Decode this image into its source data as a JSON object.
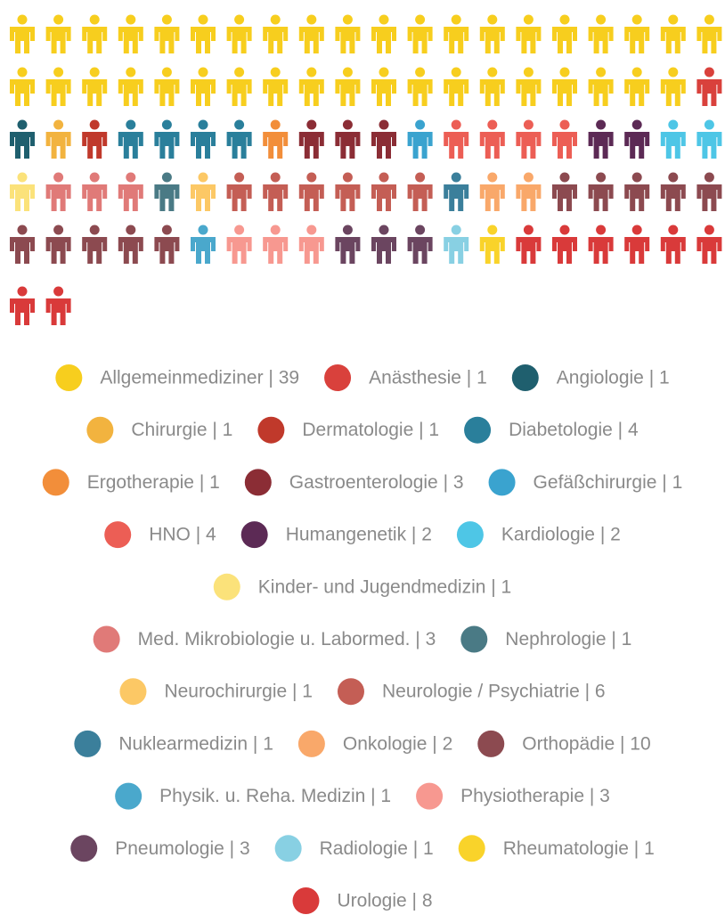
{
  "chart_data": {
    "type": "pictograph",
    "categories": [
      "Allgemeinmediziner | 39",
      "Anästhesie | 1",
      "Angiologie | 1",
      "Chirurgie | 1",
      "Dermatologie | 1",
      "Diabetologie | 4",
      "Ergotherapie | 1",
      "Gastroenterologie | 3",
      "Gefäßchirurgie | 1",
      "HNO | 4",
      "Humangenetik | 2",
      "Kardiologie | 2",
      "Kinder- und Jugendmedizin | 1",
      "Med. Mikrobiologie u. Labormed. | 3",
      "Nephrologie | 1",
      "Neurochirurgie | 1",
      "Neurologie / Psychiatrie | 6",
      "Nuklearmedizin | 1",
      "Onkologie | 2",
      "Orthopädie | 10",
      "Physik. u. Reha. Medizin | 1",
      "Physiotherapie | 3",
      "Pneumologie | 3",
      "Radiologie | 1",
      "Rheumatologie | 1",
      "Urologie | 8"
    ],
    "values": [
      39,
      1,
      1,
      1,
      1,
      4,
      1,
      3,
      1,
      4,
      2,
      2,
      1,
      3,
      1,
      1,
      6,
      1,
      2,
      10,
      1,
      3,
      3,
      1,
      1,
      8
    ],
    "colors": [
      "#f7ce1e",
      "#d9413c",
      "#1f5f6e",
      "#f2b33f",
      "#c0392b",
      "#2a7f9b",
      "#f28e3a",
      "#8b2d35",
      "#3aa3cf",
      "#ec5e55",
      "#5c2a55",
      "#4ec6e6",
      "#fbe27a",
      "#e07a78",
      "#4a7a85",
      "#fcc865",
      "#c45e55",
      "#3b7f9b",
      "#f9a86a",
      "#8c4a50",
      "#4aa8cc",
      "#f79890",
      "#6b4560",
      "#88d0e3",
      "#f9d32a",
      "#d93a3a"
    ]
  }
}
